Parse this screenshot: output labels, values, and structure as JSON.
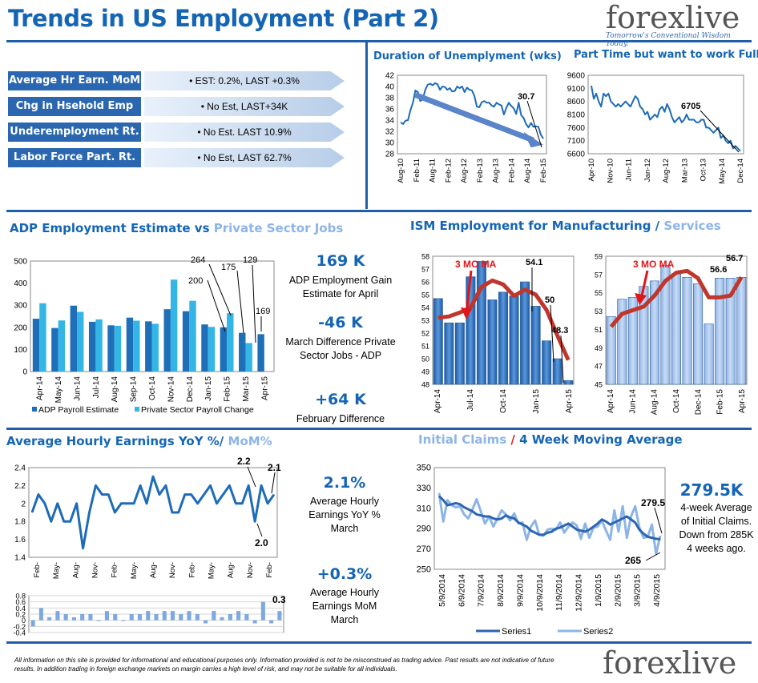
{
  "page_title": "Trends in US Employment (Part 2)",
  "logo": {
    "name_a": "forex",
    "name_b": "live",
    "tagline": "Tomorrow's Conventional Wisdom Today."
  },
  "labels": [
    {
      "label": "Average Hr Earn. MoM",
      "value": "• EST: 0.2%, LAST +0.3%"
    },
    {
      "label": "Chg in Hsehold Emp",
      "value": "• No Est, LAST+34K"
    },
    {
      "label": "Underemployment Rt.",
      "value": "• No Est. LAST 10.9%"
    },
    {
      "label": "Labor Force Part. Rt.",
      "value": "• No Est, LAST 62.7%"
    }
  ],
  "headers": {
    "unemp": "Duration of Unemplyment (wks)",
    "parttime": "Part Time but want to work Full",
    "adp_a": "ADP Employment Estimate",
    "adp_vs": " vs ",
    "adp_b": "Private Sector Jobs",
    "ism_a": "ISM Employment for Manufacturing",
    "ism_sep": " / ",
    "ism_b": "Services",
    "ahe_a": "Average Hourly Earnings YoY %/",
    "ahe_b": " MoM%",
    "claims_a": "Initial Claims",
    "claims_sep": " / ",
    "claims_b": "4 Week Moving Average"
  },
  "stats": {
    "adp_val": "169 K",
    "adp_desc": "ADP Employment Gain Estimate for April",
    "march_val": "-46 K",
    "march_desc": "March Difference Private Sector Jobs - ADP",
    "feb_val": "+64 K",
    "feb_desc": "February Difference",
    "yoy_val": "2.1%",
    "yoy_desc": "Average Hourly Earnings YoY % March",
    "mom_val": "+0.3%",
    "mom_desc": "Average Hourly Earnings MoM March",
    "claims_val": "279.5K",
    "claims_desc": "4-week Average of Initial Claims. Down from 285K 4 weeks ago."
  },
  "footer": "All information on this site is provided for informational and educational purposes only. Information provided is not to be misconstrued as trading advice.  Past results are not indicative of future results.  In addition trading in foreign exchange markets on margin carries a high level of risk, and may not be suitable for all individuals.",
  "chart_data": [
    {
      "id": "unemp",
      "type": "line",
      "title": "Duration of Unemplyment (wks)",
      "ylim": [
        28,
        42
      ],
      "yticks": [
        28,
        30,
        32,
        34,
        36,
        38,
        40,
        42
      ],
      "tick_labels": [
        "Aug-10",
        "Feb-11",
        "Aug-11",
        "Feb-12",
        "Aug-12",
        "Feb-13",
        "Aug-13",
        "Feb-14",
        "Aug-14",
        "Feb-15"
      ],
      "values": [
        33.6,
        33.3,
        33.9,
        34.0,
        35.8,
        37.1,
        39.3,
        39.0,
        37.4,
        37.7,
        39.4,
        40.3,
        40.5,
        40.2,
        40.6,
        40.4,
        39.4,
        40.0,
        39.9,
        39.4,
        39.7,
        39.1,
        39.2,
        40.0,
        39.7,
        40.0,
        39.0,
        39.8,
        39.4,
        39.3,
        38.3,
        36.4,
        36.3,
        37.2,
        37.4,
        37.1,
        37.1,
        36.6,
        36.4,
        37.1,
        36.8,
        36.6,
        35.0,
        36.2,
        37.1,
        36.5,
        36.1,
        35.1,
        37.1,
        34.9,
        34.4,
        33.3,
        32.7,
        33.5,
        32.8,
        32.9,
        32.8,
        31.4,
        30.7
      ],
      "annotation": "30.7"
    },
    {
      "id": "parttime",
      "type": "line",
      "title": "Part Time but want to work Full",
      "ylim": [
        6600,
        9600
      ],
      "yticks": [
        6600,
        7100,
        7600,
        8100,
        8600,
        9100,
        9600
      ],
      "tick_labels": [
        "Apr-10",
        "Nov-10",
        "Jun-11",
        "Jan-12",
        "Aug-12",
        "Mar-13",
        "Oct-13",
        "May-14",
        "Dec-14"
      ],
      "values": [
        9200,
        8700,
        8900,
        8600,
        8400,
        8900,
        8800,
        8900,
        8600,
        8500,
        8400,
        8500,
        8400,
        8500,
        8600,
        8500,
        8400,
        8600,
        8800,
        8700,
        8400,
        8300,
        8100,
        8200,
        7900,
        8000,
        8100,
        8000,
        8300,
        8400,
        8200,
        8500,
        8300,
        8000,
        7800,
        7900,
        8000,
        7800,
        7900,
        8100,
        7900,
        7900,
        7900,
        7800,
        7800,
        7900,
        7900,
        7600,
        7600,
        7500,
        7400,
        7500,
        7600,
        7200,
        7300,
        7100,
        7000,
        7100,
        6800,
        6900,
        6800,
        6705
      ],
      "annotation": "6705"
    },
    {
      "id": "adp",
      "type": "bar",
      "title": "ADP Employment Estimate vs Private Sector Jobs",
      "ylim": [
        0,
        500
      ],
      "yticks": [
        0,
        100,
        200,
        300,
        400,
        500
      ],
      "categories": [
        "Apr-14",
        "May-14",
        "Jun-14",
        "Jul-14",
        "Aug-14",
        "Sep-14",
        "Oct-14",
        "Nov-14",
        "Dec-14",
        "Jan-15",
        "Feb-15",
        "Mar-15",
        "Apr-15"
      ],
      "tick_labels": [
        "Apr-14",
        "May-14",
        "Jun-14",
        "Jul-14",
        "Aug-14",
        "Sep-14",
        "Oct-14",
        "Nov-14",
        "Dec-14",
        "Jan-15",
        "Feb-15",
        "Mar-15",
        "Apr-15"
      ],
      "series": [
        {
          "name": "ADP Payroll Estimate",
          "values": [
            239,
            197,
            298,
            225,
            209,
            244,
            227,
            282,
            273,
            213,
            200,
            175,
            169
          ]
        },
        {
          "name": "Private Sector Payroll Change",
          "values": [
            309,
            231,
            270,
            236,
            207,
            230,
            216,
            416,
            320,
            202,
            264,
            129,
            null
          ]
        }
      ],
      "annotations": [
        "264",
        "175",
        "129",
        "200",
        "169"
      ]
    },
    {
      "id": "ism_mfg",
      "type": "bar",
      "title": "ISM Employment for Manufacturing",
      "ylim": [
        48,
        58
      ],
      "yticks": [
        48,
        49,
        50,
        51,
        52,
        53,
        54,
        55,
        56,
        57,
        58
      ],
      "tick_labels": [
        "Apr-14",
        "Jul-14",
        "Oct-14",
        "Jan-15",
        "Apr-15"
      ],
      "values": [
        54.7,
        52.8,
        52.8,
        56.4,
        57.6,
        54.6,
        55.2,
        54.9,
        56.0,
        54.1,
        51.4,
        50.0,
        48.3
      ],
      "ma_label": "3 MO MA",
      "ma": [
        53.2,
        53.3,
        53.6,
        54.0,
        55.6,
        56.1,
        55.8,
        54.9,
        55.4,
        55.0,
        53.8,
        51.8,
        49.9
      ],
      "annotations": [
        "54.1",
        "50",
        "48.3"
      ]
    },
    {
      "id": "ism_svc",
      "type": "bar",
      "title": "Services",
      "ylim": [
        45,
        59
      ],
      "yticks": [
        45,
        47,
        49,
        51,
        53,
        55,
        57,
        59
      ],
      "tick_labels": [
        "Apr-14",
        "Jun-14",
        "Aug-14",
        "Oct-14",
        "Dec-14",
        "Feb-15",
        "Apr-15"
      ],
      "values": [
        52.4,
        54.3,
        54.5,
        55.7,
        56.3,
        58.0,
        57.1,
        56.7,
        56.0,
        51.6,
        56.6,
        56.6,
        56.7
      ],
      "ma_label": "3 MO MA",
      "ma": [
        51.3,
        52.7,
        53.1,
        53.5,
        54.7,
        56.3,
        57.2,
        57.4,
        56.6,
        54.5,
        54.5,
        54.7,
        56.7
      ],
      "annotations": [
        "56.6",
        "56.7"
      ]
    },
    {
      "id": "ahe_yoy",
      "type": "line",
      "title": "Average Hourly Earnings YoY %",
      "ylim": [
        1.4,
        2.4
      ],
      "yticks": [
        1.4,
        1.6,
        1.8,
        2.0,
        2.2,
        2.4
      ],
      "tick_labels": [
        "Feb-",
        "May-",
        "Aug-",
        "Nov-",
        "Feb-",
        "May-",
        "Aug-",
        "Nov-",
        "Feb-",
        "May-",
        "Aug-",
        "Nov-",
        "Feb-"
      ],
      "values": [
        1.9,
        2.1,
        2.0,
        1.8,
        2.0,
        1.8,
        1.8,
        2.0,
        1.5,
        1.9,
        2.2,
        2.1,
        2.1,
        1.9,
        2.0,
        2.0,
        2.0,
        2.2,
        2.0,
        2.3,
        2.1,
        2.2,
        1.9,
        1.9,
        2.1,
        2.1,
        2.0,
        2.1,
        2.2,
        2.0,
        2.1,
        2.2,
        2.0,
        2.0,
        2.2,
        1.8,
        2.2,
        2.0,
        2.1
      ],
      "annotations": [
        "2.2",
        "2.1",
        "2.0"
      ]
    },
    {
      "id": "ahe_mom",
      "type": "bar",
      "title": "MoM%",
      "ylim": [
        -0.4,
        0.8
      ],
      "yticks": [
        -0.4,
        -0.2,
        0,
        0.2,
        0.4,
        0.6,
        0.8
      ],
      "values": [
        -0.2,
        0.4,
        0.1,
        0.3,
        0.2,
        0.1,
        0.2,
        0.2,
        0.0,
        0.3,
        0.2,
        0.0,
        0.2,
        0.2,
        0.3,
        0.2,
        0.3,
        0.3,
        0.2,
        0.3,
        0.2,
        -0.1,
        0.3,
        0.1,
        0.2,
        0.3,
        0.2,
        -0.1,
        0.6,
        -0.1,
        0.3
      ],
      "annotation": "0.3"
    },
    {
      "id": "claims",
      "type": "line",
      "title": "Initial Claims / 4 Week Moving Average",
      "ylim": [
        250,
        350
      ],
      "yticks": [
        250,
        270,
        290,
        310,
        330,
        350
      ],
      "tick_labels": [
        "5/9/2014",
        "6/9/2014",
        "7/9/2014",
        "8/9/2014",
        "9/9/2014",
        "10/9/2014",
        "11/9/2014",
        "12/9/2014",
        "1/9/2015",
        "2/9/2015",
        "3/9/2015",
        "4/9/2015"
      ],
      "series": [
        {
          "name": "Series1",
          "values": [
            322,
            318,
            313,
            314,
            315,
            314,
            311,
            309,
            307,
            304,
            303,
            302,
            302,
            300,
            299,
            300,
            303,
            301,
            300,
            296,
            294,
            292,
            288,
            286,
            284,
            284,
            286,
            287,
            290,
            291,
            293,
            295,
            292,
            289,
            288,
            287,
            289,
            292,
            295,
            299,
            297,
            294,
            296,
            298,
            300,
            302,
            299,
            296,
            289,
            285,
            282,
            281,
            280,
            279.5
          ]
        },
        {
          "name": "Series2",
          "values": [
            325,
            297,
            318,
            313,
            311,
            312,
            304,
            300,
            309,
            319,
            307,
            295,
            302,
            292,
            300,
            308,
            304,
            298,
            305,
            295,
            296,
            279,
            292,
            298,
            284,
            283,
            289,
            290,
            289,
            296,
            286,
            292,
            296,
            293,
            280,
            295,
            281,
            291,
            292,
            298,
            288,
            279,
            308,
            287,
            312,
            281,
            302,
            312,
            291,
            281,
            282,
            294,
            265,
            283
          ]
        }
      ],
      "annotations": [
        "279.5",
        "265"
      ]
    }
  ]
}
